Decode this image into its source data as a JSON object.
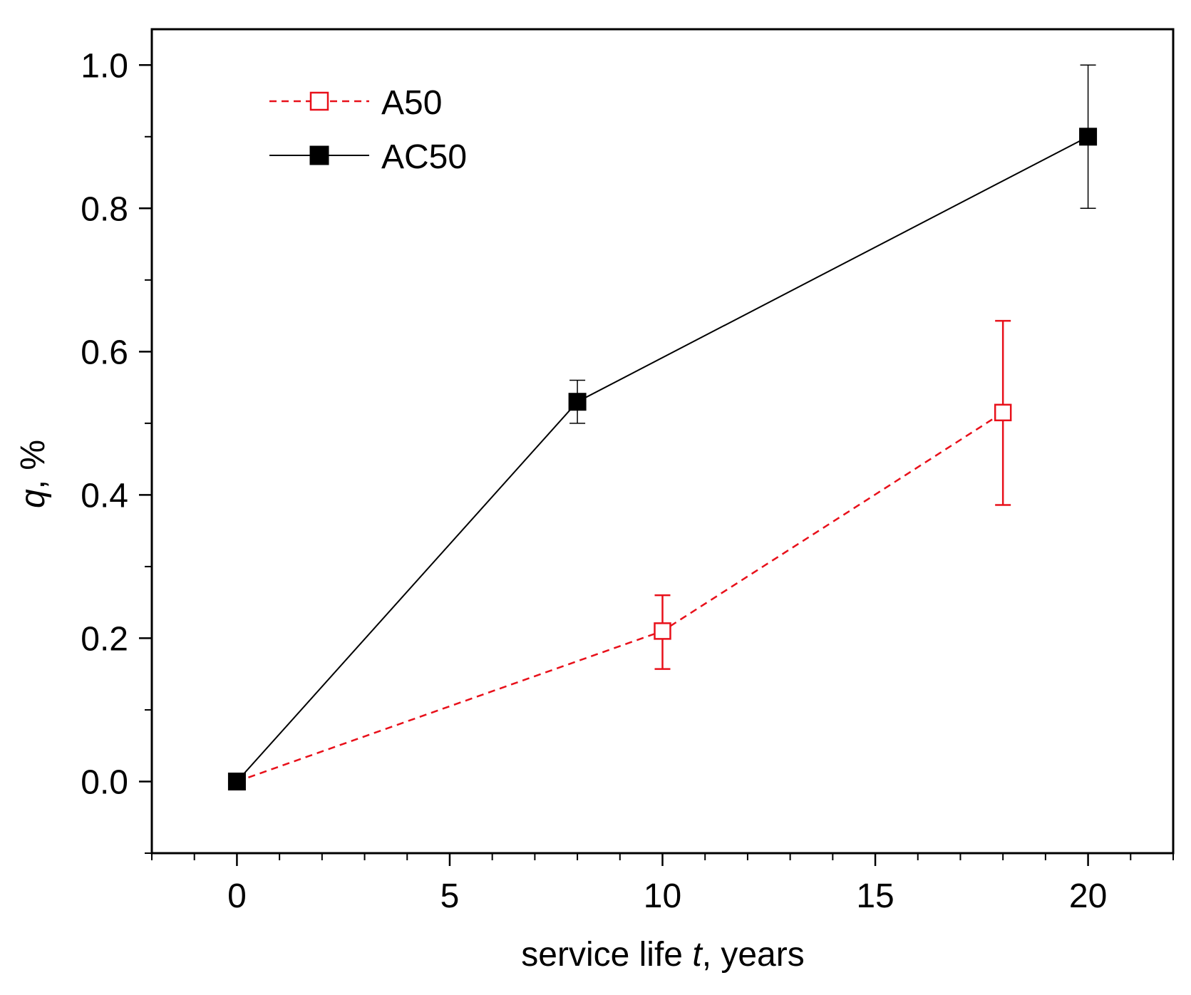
{
  "chart_data": {
    "type": "line",
    "xlabel": {
      "prefix": "service life ",
      "var": "t",
      "suffix": ", years"
    },
    "ylabel": {
      "var": "q",
      "suffix": ", %"
    },
    "xlim": [
      -2,
      22
    ],
    "ylim": [
      -0.1,
      1.05
    ],
    "xticks": [
      0,
      5,
      10,
      15,
      20
    ],
    "xtick_labels": [
      "0",
      "5",
      "10",
      "15",
      "20"
    ],
    "yticks": [
      0.0,
      0.2,
      0.4,
      0.6,
      0.8,
      1.0
    ],
    "ytick_labels": [
      "0.0",
      "0.2",
      "0.4",
      "0.6",
      "0.8",
      "1.0"
    ],
    "grid": false,
    "legend_position": "top-left",
    "series": [
      {
        "name": "A50",
        "color": "#e8101a",
        "line_style": "dashed",
        "marker": "open-square",
        "points": [
          {
            "x": 0,
            "y": 0.0
          },
          {
            "x": 10,
            "y": 0.21,
            "err_low": 0.157,
            "err_high": 0.26
          },
          {
            "x": 18,
            "y": 0.515,
            "err_low": 0.386,
            "err_high": 0.643
          }
        ]
      },
      {
        "name": "AC50",
        "color": "#000000",
        "line_style": "solid",
        "marker": "filled-square",
        "points": [
          {
            "x": 0,
            "y": 0.0
          },
          {
            "x": 8,
            "y": 0.53,
            "err_low": 0.5,
            "err_high": 0.56
          },
          {
            "x": 20,
            "y": 0.9,
            "err_low": 0.8,
            "err_high": 1.0
          }
        ]
      }
    ]
  }
}
